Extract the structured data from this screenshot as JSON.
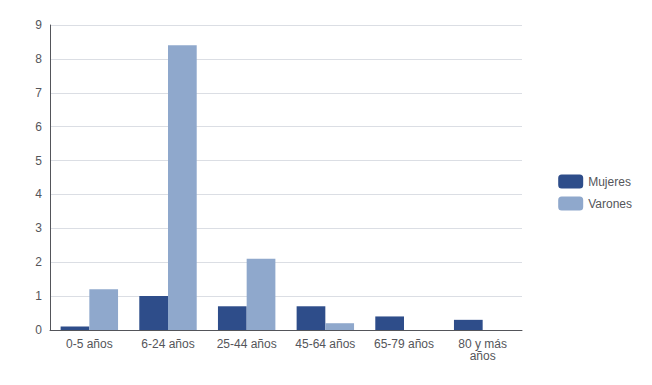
{
  "chart_data": {
    "type": "bar",
    "categories": [
      "0-5 años",
      "6-24 años",
      "25-44 años",
      "45-64 años",
      "65-79 años",
      "80 y más\naños"
    ],
    "series": [
      {
        "name": "Mujeres",
        "color": "#2E4D8A",
        "values": [
          0.1,
          1.0,
          0.7,
          0.7,
          0.4,
          0.3
        ]
      },
      {
        "name": "Varones",
        "color": "#8FA8CC",
        "values": [
          1.2,
          8.4,
          2.1,
          0.2,
          0.0,
          0.0
        ]
      }
    ],
    "ylim": [
      0,
      9
    ],
    "yticks": [
      0,
      1,
      2,
      3,
      4,
      5,
      6,
      7,
      8,
      9
    ],
    "grid": true,
    "legend": "right"
  }
}
